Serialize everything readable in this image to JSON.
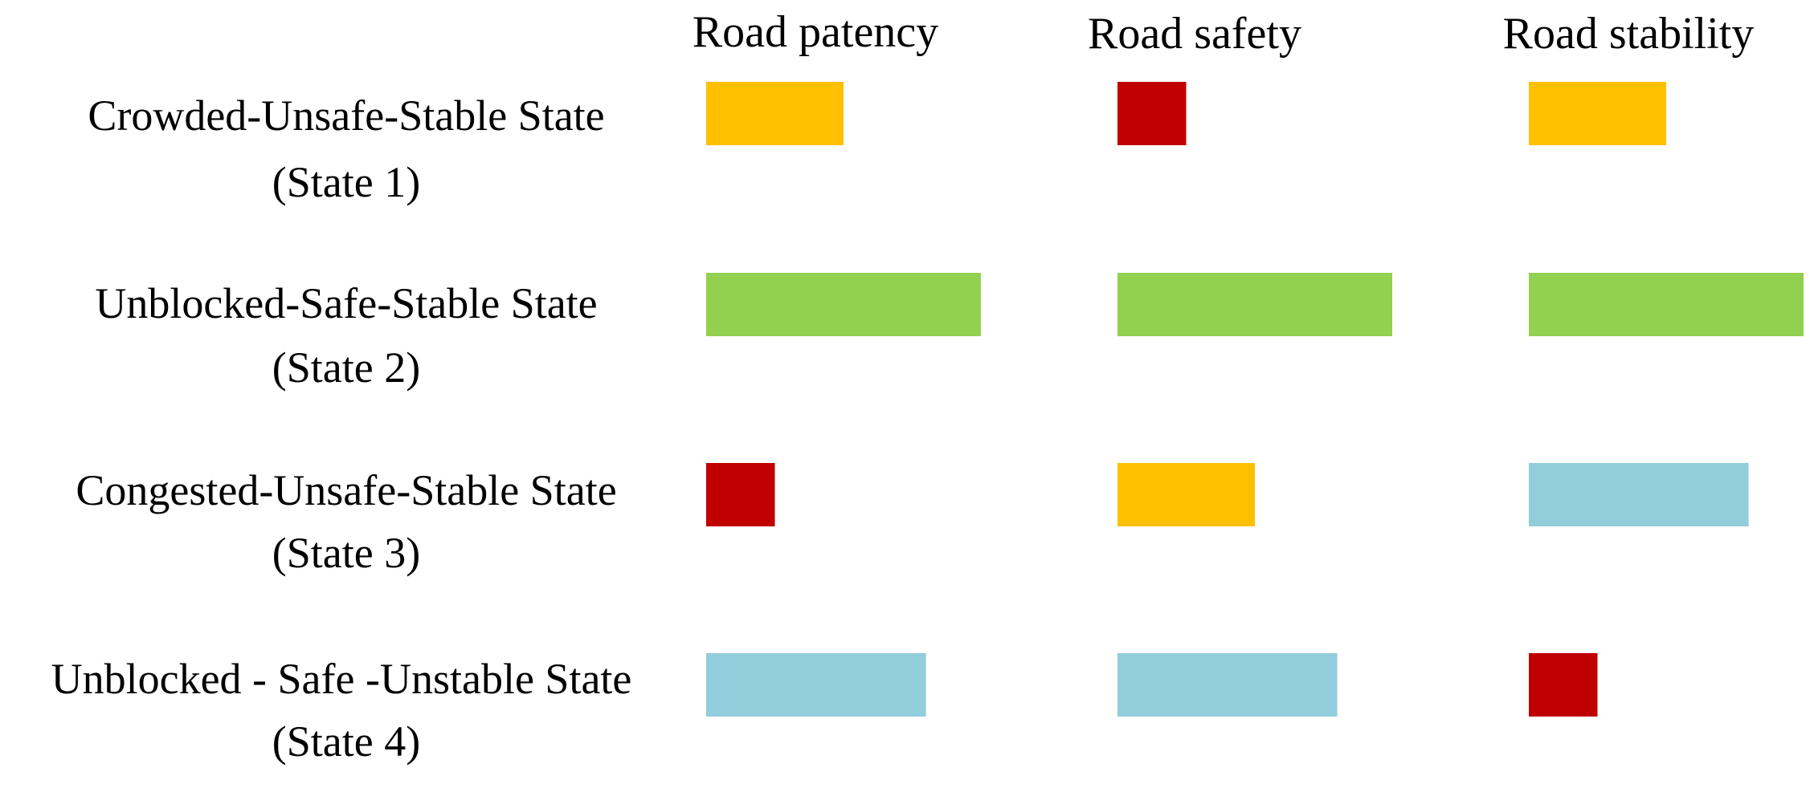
{
  "chart_data": {
    "type": "bar",
    "columns": [
      "Road patency",
      "Road safety",
      "Road stability"
    ],
    "rows": [
      {
        "label": "Crowded-Unsafe-Stable State",
        "sublabel": "(State 1)"
      },
      {
        "label": "Unblocked-Safe-Stable State",
        "sublabel": "(State 2)"
      },
      {
        "label": "Congested-Unsafe-Stable State",
        "sublabel": "(State 3)"
      },
      {
        "label": "Unblocked - Safe -Unstable State",
        "sublabel": "(State 4)"
      }
    ],
    "levels": {
      "red": 1,
      "yellow": 2,
      "blue": 3,
      "green": 4
    },
    "cells": [
      [
        {
          "level": 2,
          "color": "#FFC000"
        },
        {
          "level": 1,
          "color": "#C00000"
        },
        {
          "level": 2,
          "color": "#FFC000"
        }
      ],
      [
        {
          "level": 4,
          "color": "#92D050"
        },
        {
          "level": 4,
          "color": "#92D050"
        },
        {
          "level": 4,
          "color": "#92D050"
        }
      ],
      [
        {
          "level": 1,
          "color": "#C00000"
        },
        {
          "level": 2,
          "color": "#FFC000"
        },
        {
          "level": 3.2,
          "color": "#92CDDC"
        }
      ],
      [
        {
          "level": 3.2,
          "color": "#92CDDC"
        },
        {
          "level": 3.2,
          "color": "#92CDDC"
        },
        {
          "level": 1,
          "color": "#C00000"
        }
      ]
    ],
    "max_level": 4
  }
}
